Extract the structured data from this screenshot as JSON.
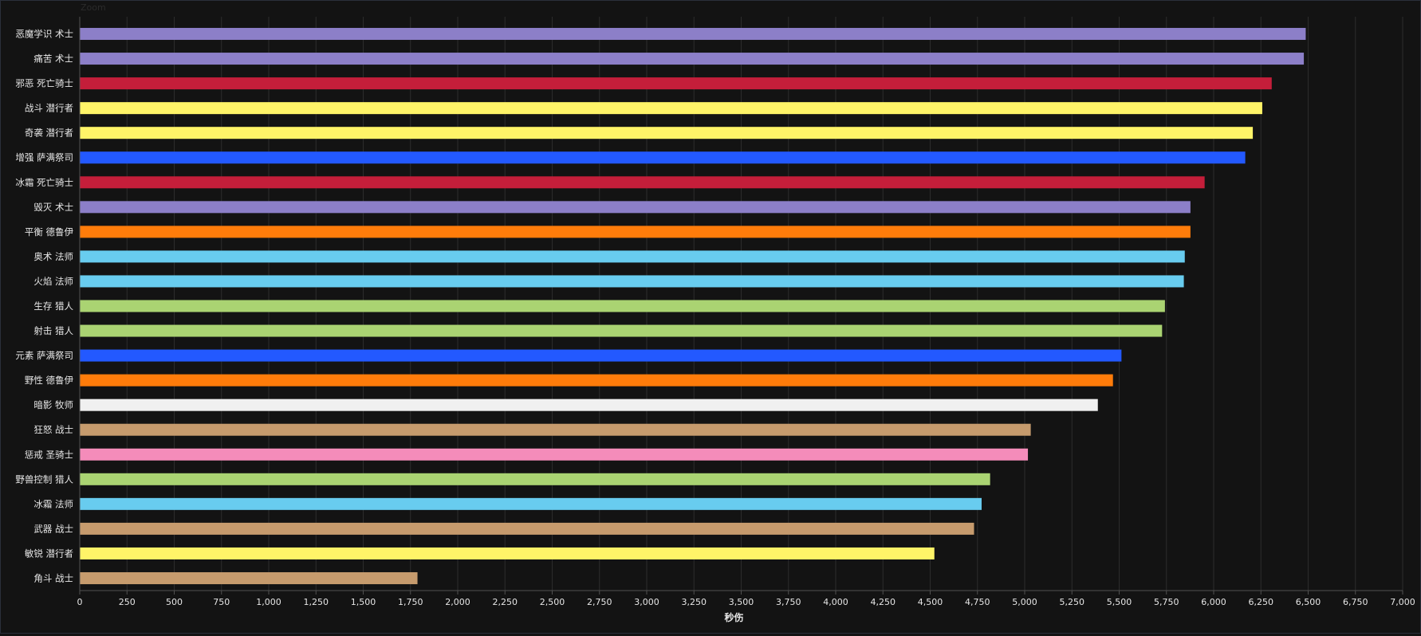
{
  "zoom_label": "Zoom",
  "chart_data": {
    "type": "bar",
    "orientation": "horizontal",
    "title": "",
    "xlabel": "秒伤",
    "ylabel": "",
    "xlim": [
      0,
      7000
    ],
    "xticks": [
      0,
      250,
      500,
      750,
      1000,
      1250,
      1500,
      1750,
      2000,
      2250,
      2500,
      2750,
      3000,
      3250,
      3500,
      3750,
      4000,
      4250,
      4500,
      4750,
      5000,
      5250,
      5500,
      5750,
      6000,
      6250,
      6500,
      6750,
      7000
    ],
    "xtick_labels": [
      "0",
      "250",
      "500",
      "750",
      "1,000",
      "1,250",
      "1,500",
      "1,750",
      "2,000",
      "2,250",
      "2,500",
      "2,750",
      "3,000",
      "3,250",
      "3,500",
      "3,750",
      "4,000",
      "4,250",
      "4,500",
      "4,750",
      "5,000",
      "5,250",
      "5,500",
      "5,750",
      "6,000",
      "6,250",
      "6,500",
      "6,750",
      "7,000"
    ],
    "grid": true,
    "categories": [
      "恶魔学识 术士",
      "痛苦 术士",
      "邪恶 死亡骑士",
      "战斗 潜行者",
      "奇袭 潜行者",
      "增强 萨满祭司",
      "冰霜 死亡骑士",
      "毁灭 术士",
      "平衡 德鲁伊",
      "奥术 法师",
      "火焰 法师",
      "生存 猎人",
      "射击 猎人",
      "元素 萨满祭司",
      "野性 德鲁伊",
      "暗影 牧师",
      "狂怒 战士",
      "惩戒 圣骑士",
      "野兽控制 猎人",
      "冰霜 法师",
      "武器 战士",
      "敏锐 潜行者",
      "角斗 战士"
    ],
    "values": [
      6485,
      6475,
      6305,
      6255,
      6205,
      6165,
      5950,
      5875,
      5875,
      5845,
      5840,
      5740,
      5725,
      5510,
      5465,
      5385,
      5030,
      5015,
      4815,
      4770,
      4730,
      4520,
      1785
    ],
    "colors": [
      "#8c7fc8",
      "#8c7fc8",
      "#c41e3a",
      "#fff468",
      "#fff468",
      "#2359ff",
      "#c41e3a",
      "#8c7fc8",
      "#ff7c0a",
      "#68ccef",
      "#68ccef",
      "#aad372",
      "#aad372",
      "#2359ff",
      "#ff7c0a",
      "#f0f0f0",
      "#c69b6d",
      "#f48cba",
      "#aad372",
      "#68ccef",
      "#c69b6d",
      "#fff468",
      "#c69b6d"
    ],
    "colors_meta": {
      "background": "#131313",
      "grid": "#2c2c2c",
      "axis": "#505050",
      "text": "#e6e6e6"
    }
  }
}
